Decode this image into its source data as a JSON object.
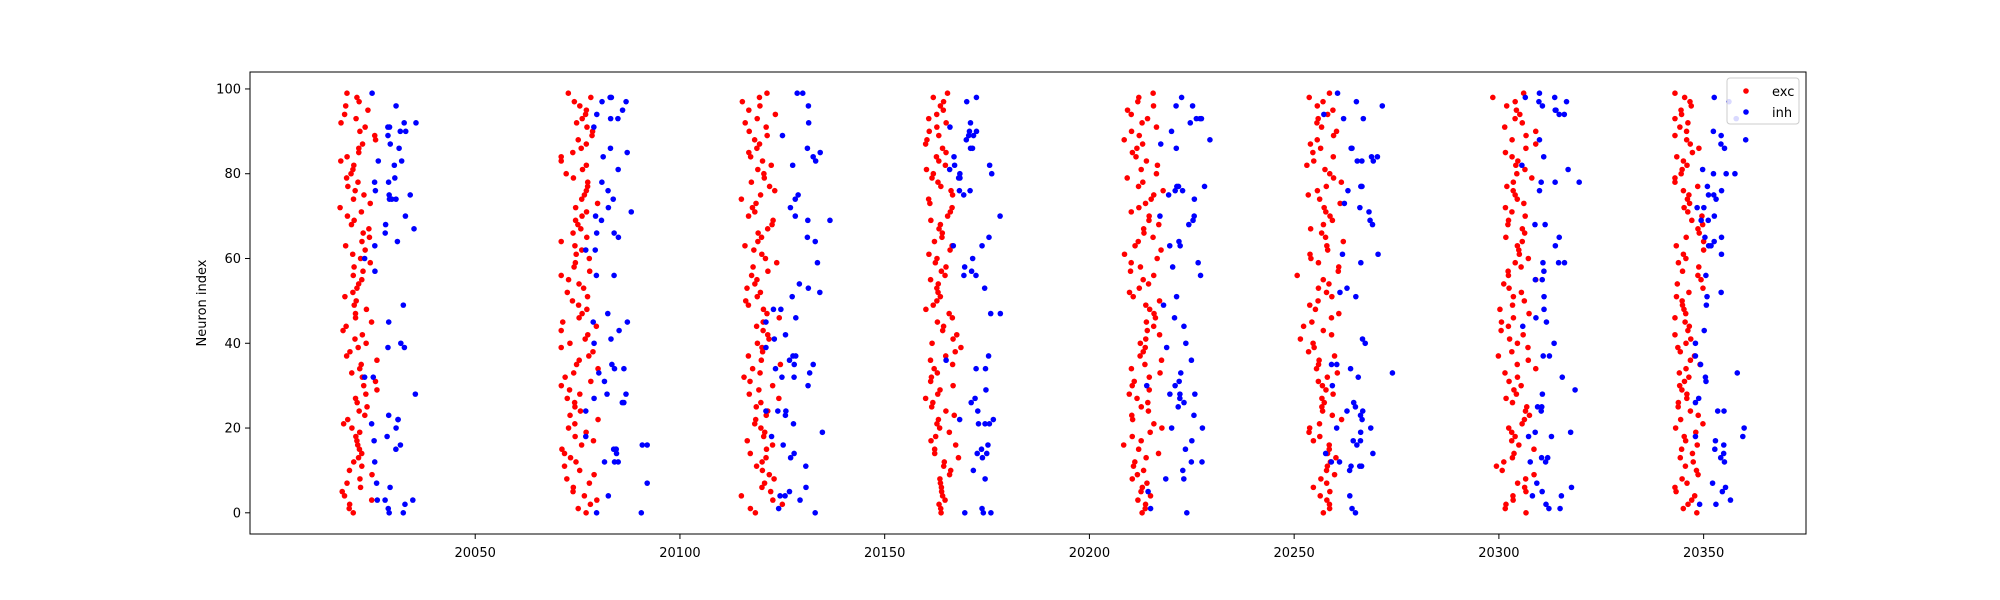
{
  "chart_data": {
    "type": "scatter",
    "title": "",
    "xlabel": "",
    "ylabel": "Neuron index",
    "xlim": [
      19995,
      20375
    ],
    "ylim": [
      -5,
      104
    ],
    "xticks": [
      20050,
      20100,
      20150,
      20200,
      20250,
      20300,
      20350
    ],
    "yticks": [
      0,
      20,
      40,
      60,
      80,
      100
    ],
    "grid": false,
    "legend_position": "top-right",
    "series": [
      {
        "name": "exc",
        "color": "#ff0000",
        "marker": "circle",
        "bursts": [
          {
            "x_center": 20021,
            "x_spread": 2.3,
            "x_min": 20017,
            "x_max": 20026
          },
          {
            "x_center": 20075,
            "x_spread": 2.3,
            "x_min": 20071,
            "x_max": 20080
          },
          {
            "x_center": 20120,
            "x_spread": 2.3,
            "x_min": 20115,
            "x_max": 20125
          },
          {
            "x_center": 20164,
            "x_spread": 2.3,
            "x_min": 20160,
            "x_max": 20170
          },
          {
            "x_center": 20213,
            "x_spread": 2.3,
            "x_min": 20207,
            "x_max": 20218
          },
          {
            "x_center": 20257,
            "x_spread": 2.3,
            "x_min": 20249,
            "x_max": 20262
          },
          {
            "x_center": 20304,
            "x_spread": 2.3,
            "x_min": 20298,
            "x_max": 20309
          },
          {
            "x_center": 20346,
            "x_spread": 2.3,
            "x_min": 20343,
            "x_max": 20350
          }
        ],
        "points_per_burst": 100
      },
      {
        "name": "inh",
        "color": "#0000ff",
        "marker": "circle",
        "bursts": [
          {
            "x_center": 20030,
            "x_spread": 3.3,
            "x_min": 20023,
            "x_max": 20039
          },
          {
            "x_center": 20084,
            "x_spread": 3.3,
            "x_min": 20077,
            "x_max": 20092
          },
          {
            "x_center": 20128,
            "x_spread": 3.3,
            "x_min": 20121,
            "x_max": 20139
          },
          {
            "x_center": 20172,
            "x_spread": 3.3,
            "x_min": 20165,
            "x_max": 20181
          },
          {
            "x_center": 20222,
            "x_spread": 3.3,
            "x_min": 20214,
            "x_max": 20232
          },
          {
            "x_center": 20265,
            "x_spread": 3.3,
            "x_min": 20257,
            "x_max": 20274
          },
          {
            "x_center": 20312,
            "x_spread": 3.3,
            "x_min": 20305,
            "x_max": 20323
          },
          {
            "x_center": 20353,
            "x_spread": 3.3,
            "x_min": 20348,
            "x_max": 20363
          }
        ],
        "points_per_burst": 58
      }
    ]
  }
}
